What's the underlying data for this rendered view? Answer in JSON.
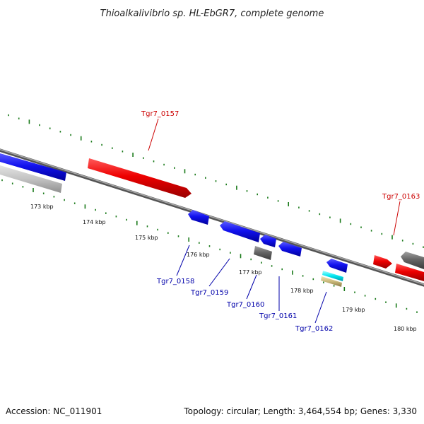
{
  "title": "Thioalkalivibrio sp. HL-EbGR7, complete genome",
  "footer": {
    "accession": "Accession: NC_011901",
    "summary": "Topology: circular; Length: 3,464,554 bp; Genes: 3,330"
  },
  "colors": {
    "backbone": "#8a8a8a",
    "tick": "#1a7a1a",
    "forward_label": "#cc0000",
    "reverse_label": "#0000aa"
  },
  "scale_labels": [
    {
      "text": "173 kbp"
    },
    {
      "text": "174 kbp"
    },
    {
      "text": "175 kbp"
    },
    {
      "text": "176 kbp"
    },
    {
      "text": "177 kbp"
    },
    {
      "text": "178 kbp"
    },
    {
      "text": "179 kbp"
    },
    {
      "text": "180 kbp"
    }
  ],
  "gene_labels": [
    {
      "id": "Tgr7_0157",
      "strand": "forward"
    },
    {
      "id": "Tgr7_0158",
      "strand": "reverse"
    },
    {
      "id": "Tgr7_0159",
      "strand": "reverse"
    },
    {
      "id": "Tgr7_0160",
      "strand": "reverse"
    },
    {
      "id": "Tgr7_0161",
      "strand": "reverse"
    },
    {
      "id": "Tgr7_0162",
      "strand": "reverse"
    },
    {
      "id": "Tgr7_0163",
      "strand": "forward"
    }
  ]
}
